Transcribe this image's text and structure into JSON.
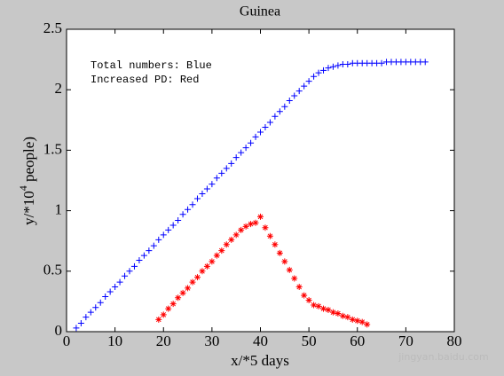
{
  "chart_data": {
    "type": "scatter",
    "title": "Guinea",
    "xlabel": "x/*5 days",
    "ylabel": "y/*10",
    "ylabel_superscript": "4",
    "ylabel_suffix": " people)",
    "annotations": [
      "Total numbers: Blue",
      "Increased PD: Red"
    ],
    "watermark": "jingyan.baidu.com",
    "xlim": [
      0,
      80
    ],
    "xticks": [
      0,
      10,
      20,
      30,
      40,
      50,
      60,
      70,
      80
    ],
    "ylim": [
      0,
      2.5
    ],
    "yticks": [
      0,
      0.5,
      1,
      1.5,
      2,
      2.5
    ],
    "series": [
      {
        "color": "#0000ff",
        "marker": "plus",
        "x": [
          2,
          3,
          4,
          5,
          6,
          7,
          8,
          9,
          10,
          11,
          12,
          13,
          14,
          15,
          16,
          17,
          18,
          19,
          20,
          21,
          22,
          23,
          24,
          25,
          26,
          27,
          28,
          29,
          30,
          31,
          32,
          33,
          34,
          35,
          36,
          37,
          38,
          39,
          40,
          41,
          42,
          43,
          44,
          45,
          46,
          47,
          48,
          49,
          50,
          51,
          52,
          53,
          54,
          55,
          56,
          57,
          58,
          59,
          60,
          61,
          62,
          63,
          64,
          65,
          66,
          67,
          68,
          69,
          70,
          71,
          72,
          73,
          74
        ],
        "values": [
          0.03,
          0.07,
          0.12,
          0.16,
          0.2,
          0.24,
          0.29,
          0.33,
          0.37,
          0.41,
          0.46,
          0.5,
          0.54,
          0.59,
          0.63,
          0.67,
          0.71,
          0.76,
          0.8,
          0.84,
          0.88,
          0.92,
          0.97,
          1.01,
          1.05,
          1.1,
          1.14,
          1.18,
          1.22,
          1.27,
          1.31,
          1.35,
          1.39,
          1.44,
          1.48,
          1.52,
          1.56,
          1.61,
          1.65,
          1.69,
          1.73,
          1.78,
          1.82,
          1.86,
          1.91,
          1.95,
          1.99,
          2.03,
          2.07,
          2.11,
          2.14,
          2.16,
          2.18,
          2.19,
          2.2,
          2.21,
          2.21,
          2.22,
          2.22,
          2.22,
          2.22,
          2.22,
          2.22,
          2.22,
          2.23,
          2.23,
          2.23,
          2.23,
          2.23,
          2.23,
          2.23,
          2.23,
          2.23
        ]
      },
      {
        "color": "#ff0000",
        "marker": "asterisk",
        "x": [
          19,
          20,
          21,
          22,
          23,
          24,
          25,
          26,
          27,
          28,
          29,
          30,
          31,
          32,
          33,
          34,
          35,
          36,
          37,
          38,
          39,
          40,
          41,
          42,
          43,
          44,
          45,
          46,
          47,
          48,
          49,
          50,
          51,
          52,
          53,
          54,
          55,
          56,
          57,
          58,
          59,
          60,
          61,
          62
        ],
        "values": [
          0.1,
          0.14,
          0.19,
          0.23,
          0.28,
          0.32,
          0.36,
          0.41,
          0.45,
          0.5,
          0.54,
          0.58,
          0.63,
          0.67,
          0.72,
          0.76,
          0.8,
          0.84,
          0.87,
          0.89,
          0.9,
          0.95,
          0.86,
          0.79,
          0.72,
          0.65,
          0.58,
          0.51,
          0.44,
          0.37,
          0.3,
          0.26,
          0.22,
          0.21,
          0.19,
          0.18,
          0.16,
          0.15,
          0.13,
          0.12,
          0.1,
          0.09,
          0.08,
          0.06
        ]
      }
    ]
  }
}
